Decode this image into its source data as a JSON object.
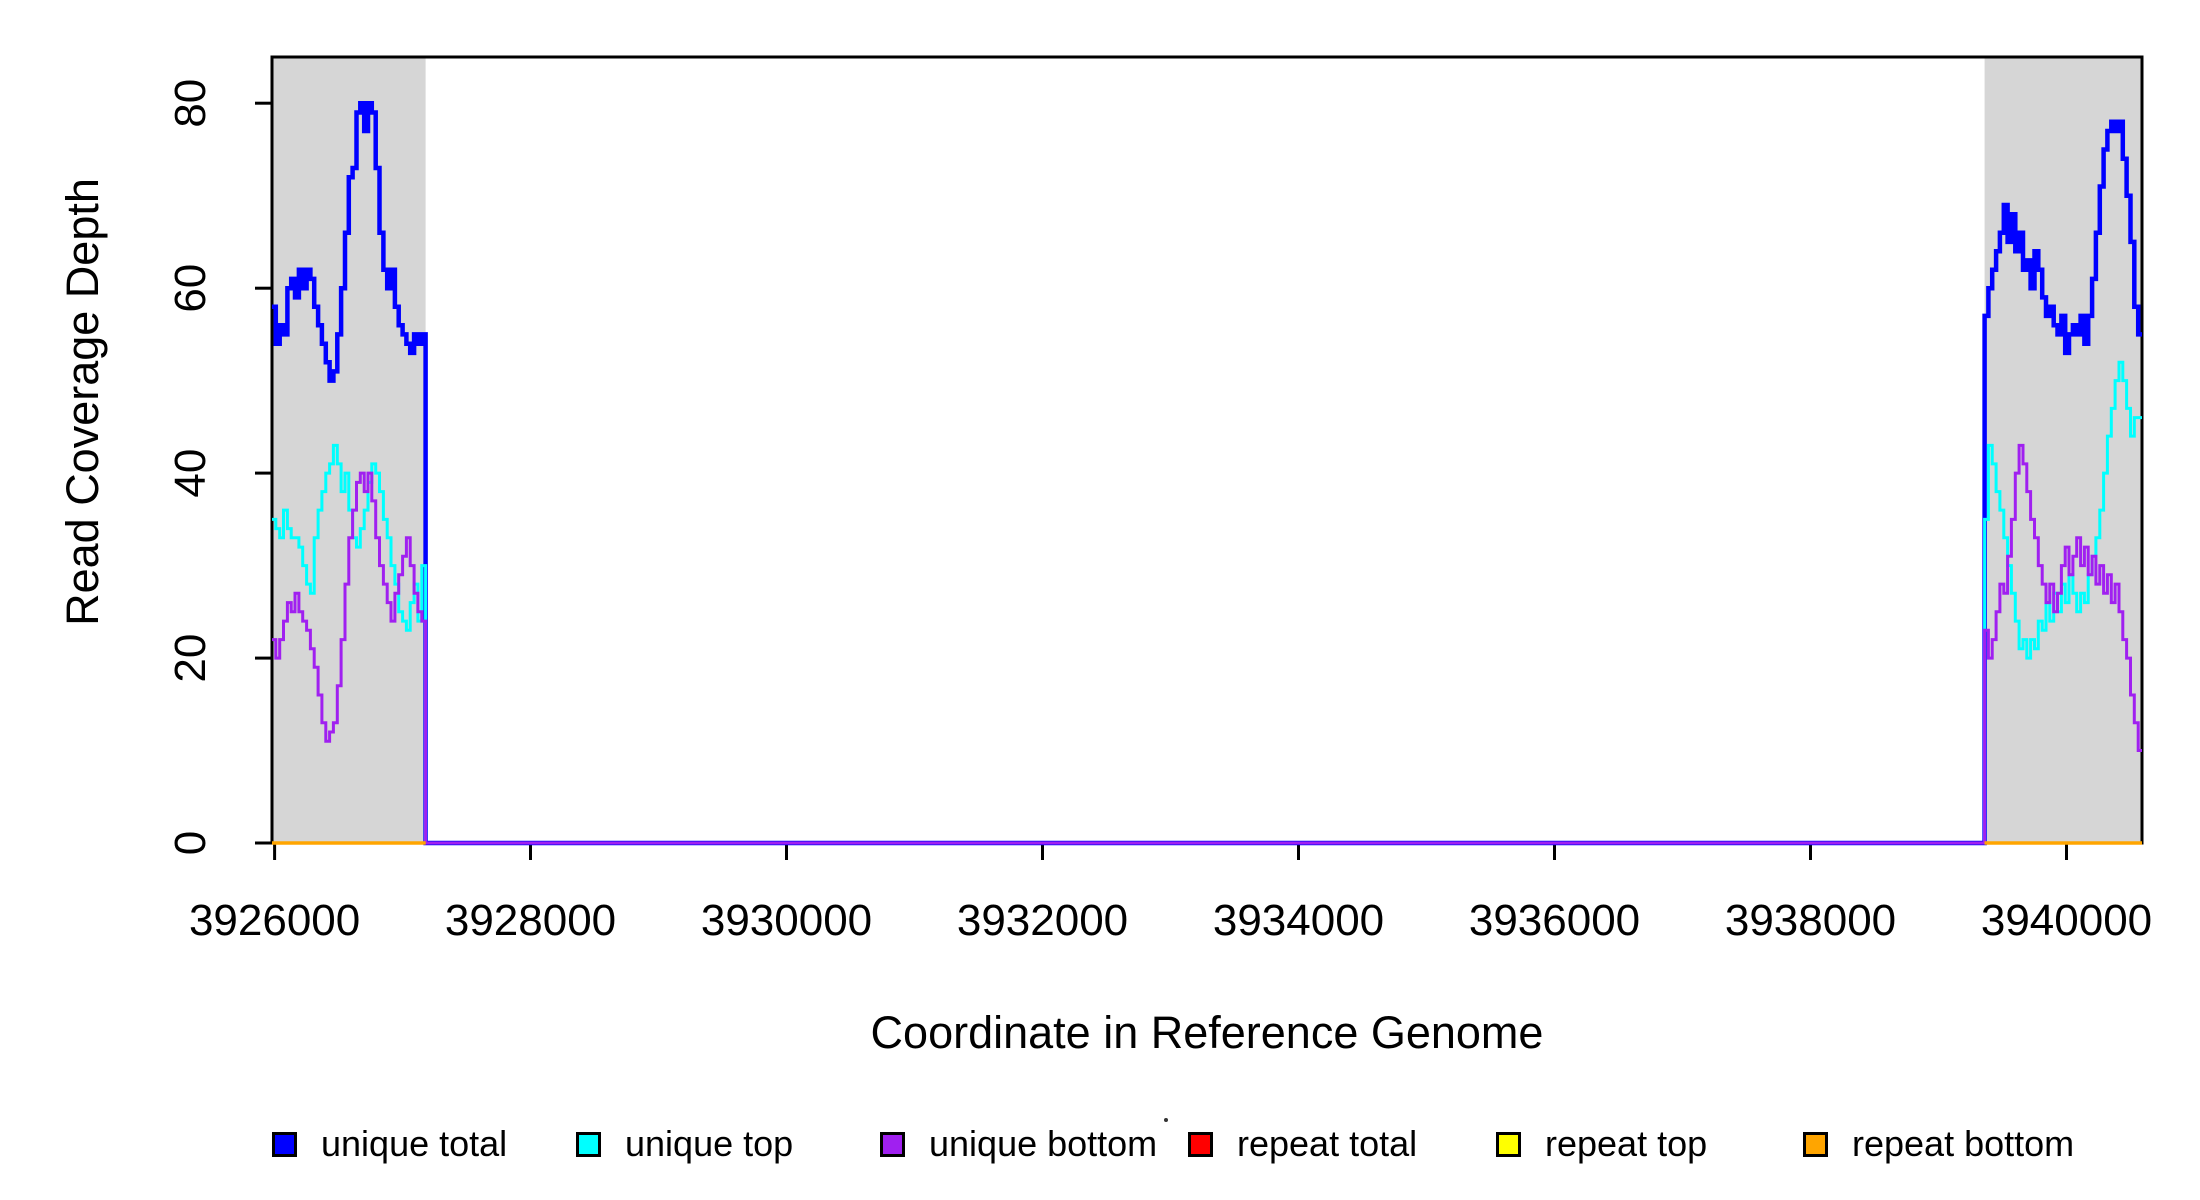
{
  "figure": {
    "background": "#FFFFFF",
    "axis_color": "#000000",
    "shade_color": "#D6D6D6"
  },
  "chart_data": {
    "type": "line",
    "step": true,
    "title": "",
    "xlabel": "Coordinate in Reference Genome",
    "ylabel": "Read Coverage Depth",
    "xlim": [
      3925980,
      3940590
    ],
    "ylim": [
      0,
      85
    ],
    "xticks": [
      3926000,
      3928000,
      3930000,
      3932000,
      3934000,
      3936000,
      3938000,
      3940000
    ],
    "yticks": [
      0,
      20,
      40,
      60,
      80
    ],
    "grid": false,
    "legend_position": "bottom",
    "shaded_regions": [
      {
        "start": 3925980,
        "end": 3927180,
        "color": "#D6D6D6"
      },
      {
        "start": 3939360,
        "end": 3940590,
        "color": "#D6D6D6"
      }
    ],
    "series": [
      {
        "name": "unique total",
        "color": "#0000FF",
        "line_width": 4.5,
        "segments": [
          {
            "x0": 3925980,
            "dx": 30,
            "values": [
              58,
              54,
              56,
              55,
              60,
              61,
              59,
              62,
              60,
              62,
              61,
              58,
              56,
              54,
              52,
              50,
              51,
              55,
              60,
              66,
              72,
              73,
              79,
              80,
              77,
              80,
              79,
              73,
              66,
              62,
              60,
              62,
              58,
              56,
              55,
              54,
              53,
              55,
              54,
              55
            ]
          },
          {
            "x0": 3927180,
            "dx": 12180,
            "values": [
              0
            ]
          },
          {
            "x0": 3939360,
            "dx": 30,
            "values": [
              57,
              60,
              62,
              64,
              66,
              69,
              65,
              68,
              64,
              66,
              62,
              63,
              60,
              64,
              62,
              59,
              57,
              58,
              56,
              55,
              57,
              53,
              55,
              56,
              55,
              57,
              54,
              57,
              61,
              66,
              71,
              75,
              77,
              78,
              77,
              78,
              74,
              70,
              65,
              58,
              55
            ]
          }
        ]
      },
      {
        "name": "unique top",
        "color": "#00FFFF",
        "line_width": 3,
        "segments": [
          {
            "x0": 3925980,
            "dx": 30,
            "values": [
              35,
              34,
              33,
              36,
              34,
              33,
              33,
              32,
              30,
              28,
              27,
              33,
              36,
              38,
              40,
              41,
              43,
              41,
              38,
              40,
              36,
              33,
              32,
              34,
              36,
              39,
              41,
              40,
              38,
              35,
              33,
              30,
              28,
              25,
              24,
              23,
              26,
              28,
              24,
              30
            ]
          },
          {
            "x0": 3927180,
            "dx": 12180,
            "values": [
              0
            ]
          },
          {
            "x0": 3939360,
            "dx": 30,
            "values": [
              35,
              43,
              41,
              38,
              36,
              33,
              30,
              27,
              24,
              21,
              22,
              20,
              22,
              21,
              24,
              23,
              26,
              24,
              27,
              25,
              28,
              26,
              29,
              27,
              25,
              27,
              26,
              29,
              31,
              33,
              36,
              40,
              44,
              47,
              50,
              52,
              50,
              47,
              44,
              46,
              46
            ]
          }
        ]
      },
      {
        "name": "unique bottom",
        "color": "#A020F0",
        "line_width": 3,
        "segments": [
          {
            "x0": 3925980,
            "dx": 30,
            "values": [
              22,
              20,
              22,
              24,
              26,
              25,
              27,
              25,
              24,
              23,
              21,
              19,
              16,
              13,
              11,
              12,
              13,
              17,
              22,
              28,
              33,
              36,
              39,
              40,
              38,
              40,
              37,
              33,
              30,
              28,
              26,
              24,
              27,
              29,
              31,
              33,
              30,
              27,
              25,
              24
            ]
          },
          {
            "x0": 3927180,
            "dx": 12180,
            "values": [
              0
            ]
          },
          {
            "x0": 3939360,
            "dx": 30,
            "values": [
              23,
              20,
              22,
              25,
              28,
              27,
              31,
              35,
              40,
              43,
              41,
              38,
              35,
              33,
              30,
              28,
              26,
              28,
              25,
              27,
              30,
              32,
              29,
              31,
              33,
              30,
              32,
              29,
              31,
              28,
              30,
              27,
              29,
              26,
              28,
              25,
              22,
              20,
              16,
              13,
              10
            ]
          }
        ]
      },
      {
        "name": "repeat total",
        "color": "#FF0000",
        "line_width": 3,
        "segments": [
          {
            "x0": 3925980,
            "dx": 1200,
            "values": [
              0
            ]
          },
          {
            "x0": 3939360,
            "dx": 1230,
            "values": [
              0
            ]
          }
        ]
      },
      {
        "name": "repeat top",
        "color": "#FFFF00",
        "line_width": 3,
        "segments": [
          {
            "x0": 3925980,
            "dx": 1200,
            "values": [
              0
            ]
          },
          {
            "x0": 3939360,
            "dx": 1230,
            "values": [
              0
            ]
          }
        ]
      },
      {
        "name": "repeat bottom",
        "color": "#FFA500",
        "line_width": 3.5,
        "segments": [
          {
            "x0": 3925980,
            "dx": 1200,
            "values": [
              0
            ]
          },
          {
            "x0": 3939360,
            "dx": 1230,
            "values": [
              0
            ]
          }
        ]
      }
    ]
  }
}
